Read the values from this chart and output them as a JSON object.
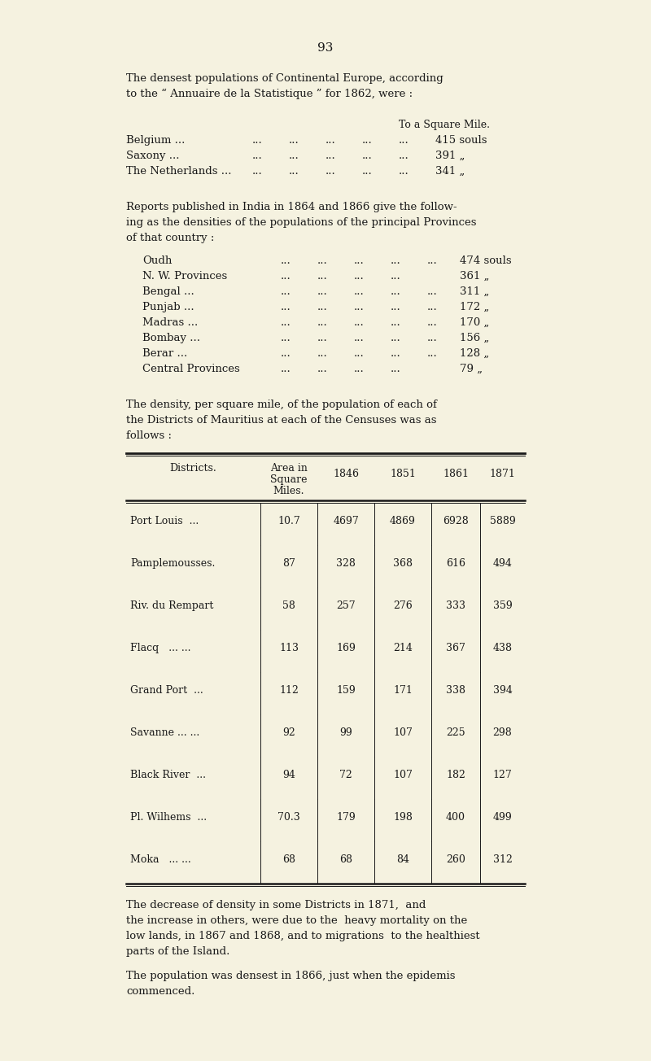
{
  "page_number": "93",
  "bg_color": "#f5f2e0",
  "text_color": "#1a1a1a",
  "para1_line1": "The densest populations of Continental Europe, according",
  "para1_line2": "to the “ Annuaire de la Statistique ” for 1862, were :",
  "europe_header": "To a Square Mile.",
  "europe_lines": [
    [
      "Belgium ...",
      "415 souls"
    ],
    [
      "Saxony ...",
      "391 „"
    ],
    [
      "The Netherlands ...",
      "341 „"
    ]
  ],
  "para2_line1": "Reports published in India in 1864 and 1866 give the follow-",
  "para2_line2": "ing as the densities of the populations of the principal Provinces",
  "para2_line3": "of that country :",
  "india_lines": [
    [
      "Oudh",
      "474 souls",
      5
    ],
    [
      "N. W. Provinces",
      "361 „",
      4
    ],
    [
      "Bengal ...",
      "311 „",
      5
    ],
    [
      "Punjab ...",
      "172 „",
      5
    ],
    [
      "Madras ...",
      "170 „",
      5
    ],
    [
      "Bombay ...",
      "156 „",
      5
    ],
    [
      "Berar ...",
      "128 „",
      5
    ],
    [
      "Central Provinces",
      "79 „",
      4
    ]
  ],
  "para3_line1": "The density, per square mile, of the population of each of",
  "para3_line2": "the Districts of Mauritius at each of the Censuses was as",
  "para3_line3": "follows :",
  "table_data": [
    [
      "Port Louis  ...",
      "10.7",
      "4697",
      "4869",
      "6928",
      "5889"
    ],
    [
      "Pamplemousses.",
      "87",
      "328",
      "368",
      "616",
      "494"
    ],
    [
      "Riv. du Rempart",
      "58",
      "257",
      "276",
      "333",
      "359"
    ],
    [
      "Flacq   ... ...",
      "113",
      "169",
      "214",
      "367",
      "438"
    ],
    [
      "Grand Port  ...",
      "112",
      "159",
      "171",
      "338",
      "394"
    ],
    [
      "Savanne ... ...",
      "92",
      "99",
      "107",
      "225",
      "298"
    ],
    [
      "Black River  ...",
      "94",
      "72",
      "107",
      "182",
      "127"
    ],
    [
      "Pl. Wilhems  ...",
      "70.3",
      "179",
      "198",
      "400",
      "499"
    ],
    [
      "Moka   ... ...",
      "68",
      "68",
      "84",
      "260",
      "312"
    ]
  ],
  "para4_line1": "The decrease of density in some Districts in 1871,  and",
  "para4_line2": "the increase in others, were due to the  heavy mortality on the",
  "para4_line3": "low lands, in 1867 and 1868, and to migrations  to the healthiest",
  "para4_line4": "parts of the Island.",
  "para5_line1": "The population was densest in 1866, just when the epidemis",
  "para5_line2": "commenced."
}
